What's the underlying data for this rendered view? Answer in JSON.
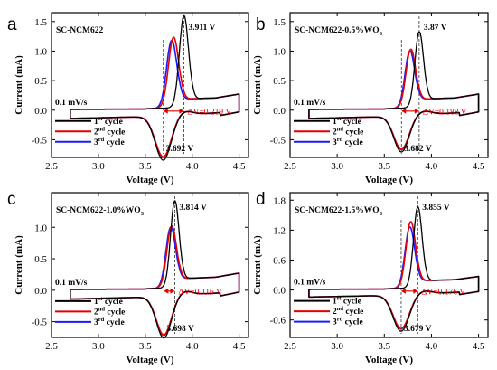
{
  "colors": {
    "cycle1": "#000000",
    "cycle2": "#e60000",
    "cycle3": "#1a1aff",
    "delta": "#e60000"
  },
  "legend": [
    {
      "num": "1",
      "sup": "st",
      "text": "cycle"
    },
    {
      "num": "2",
      "sup": "nd",
      "text": "cycle"
    },
    {
      "num": "3",
      "sup": "rd",
      "text": "cycle"
    }
  ],
  "chart_data": [
    {
      "type": "line",
      "panel": "a",
      "sample": "SC-NCM622",
      "scan_rate": "0.1 mV/s",
      "xlabel": "Voltage (V)",
      "ylabel": "Current (mA)",
      "xlim": [
        2.5,
        4.6
      ],
      "ylim": [
        -0.8,
        1.65
      ],
      "xticks": [
        "2.5",
        "3.0",
        "3.5",
        "4.0",
        "4.5"
      ],
      "yticks": [
        {
          "v": -0.5,
          "label": "-0.5"
        },
        {
          "v": 0.0,
          "label": "0.0"
        },
        {
          "v": 0.5,
          "label": "0.5"
        },
        {
          "v": 1.0,
          "label": "1.0"
        },
        {
          "v": 1.5,
          "label": "1.5"
        }
      ],
      "ox1": {
        "v": 3.911,
        "i": 1.55,
        "w": 0.048
      },
      "ox2": {
        "v": 3.8,
        "i": 1.19,
        "w": 0.053
      },
      "ox3": {
        "v": 3.78,
        "i": 1.14,
        "w": 0.053
      },
      "red": {
        "v": 3.692,
        "i": -0.7,
        "w": 0.085
      },
      "ox_label": "3.911 V",
      "red_label": "3.692 V",
      "delta_label": "ΔV=0.219 V"
    },
    {
      "type": "line",
      "panel": "b",
      "sample": "SC-NCM622-0.5%WO",
      "sample_sub": "3",
      "scan_rate": "0.1 mV/s",
      "xlabel": "Voltage (V)",
      "ylabel": "Current (mA)",
      "xlim": [
        2.5,
        4.6
      ],
      "ylim": [
        -0.8,
        1.65
      ],
      "xticks": [
        "2.5",
        "3.0",
        "3.5",
        "4.0",
        "4.5"
      ],
      "yticks": [
        {
          "v": -0.5,
          "label": "-0.5"
        },
        {
          "v": 0.0,
          "label": "0.0"
        },
        {
          "v": 0.5,
          "label": "0.5"
        },
        {
          "v": 1.0,
          "label": "1.0"
        },
        {
          "v": 1.5,
          "label": "1.5"
        }
      ],
      "ox1": {
        "v": 3.87,
        "i": 1.28,
        "w": 0.045
      },
      "ox2": {
        "v": 3.78,
        "i": 0.99,
        "w": 0.05
      },
      "ox3": {
        "v": 3.77,
        "i": 0.96,
        "w": 0.05
      },
      "red": {
        "v": 3.682,
        "i": -0.57,
        "w": 0.08
      },
      "ox_label": "3.87 V",
      "red_label": "3.682 V",
      "delta_label": "ΔV=0.188 V"
    },
    {
      "type": "line",
      "panel": "c",
      "sample": "SC-NCM622-1.0%WO",
      "sample_sub": "3",
      "scan_rate": "0.1 mV/s",
      "xlabel": "Voltage (V)",
      "ylabel": "Current (mA)",
      "xlim": [
        2.5,
        4.6
      ],
      "ylim": [
        -0.75,
        1.55
      ],
      "xticks": [
        "2.5",
        "3.0",
        "3.5",
        "4.0",
        "4.5"
      ],
      "yticks": [
        {
          "v": -0.5,
          "label": "-0.5"
        },
        {
          "v": 0.0,
          "label": "0.0"
        },
        {
          "v": 0.5,
          "label": "0.5"
        },
        {
          "v": 1.0,
          "label": "1.0"
        }
      ],
      "ox1": {
        "v": 3.814,
        "i": 1.38,
        "w": 0.045
      },
      "ox2": {
        "v": 3.78,
        "i": 0.98,
        "w": 0.05
      },
      "ox3": {
        "v": 3.77,
        "i": 0.96,
        "w": 0.05
      },
      "red": {
        "v": 3.698,
        "i": -0.62,
        "w": 0.08
      },
      "ox_label": "3.814 V",
      "red_label": "3.698 V",
      "delta_label": "ΔV=0.116 V"
    },
    {
      "type": "line",
      "panel": "d",
      "sample": "SC-NCM622-1.5%WO",
      "sample_sub": "3",
      "scan_rate": "0.1 mV/s",
      "xlabel": "Voltage (V)",
      "ylabel": "Current (mA)",
      "xlim": [
        2.5,
        4.6
      ],
      "ylim": [
        -0.95,
        1.95
      ],
      "xticks": [
        "2.5",
        "3.0",
        "3.5",
        "4.0",
        "4.5"
      ],
      "yticks": [
        {
          "v": -0.6,
          "label": "-0.6"
        },
        {
          "v": 0.0,
          "label": "0.0"
        },
        {
          "v": 0.6,
          "label": "0.6"
        },
        {
          "v": 1.2,
          "label": "1.2"
        },
        {
          "v": 1.8,
          "label": "1.8"
        }
      ],
      "ox1": {
        "v": 3.855,
        "i": 1.62,
        "w": 0.045
      },
      "ox2": {
        "v": 3.78,
        "i": 1.33,
        "w": 0.05
      },
      "ox3": {
        "v": 3.77,
        "i": 1.22,
        "w": 0.05
      },
      "red": {
        "v": 3.679,
        "i": -0.68,
        "w": 0.085
      },
      "ox_label": "3.855 V",
      "red_label": "3.679 V",
      "delta_label": "ΔV=0.176 V"
    }
  ]
}
